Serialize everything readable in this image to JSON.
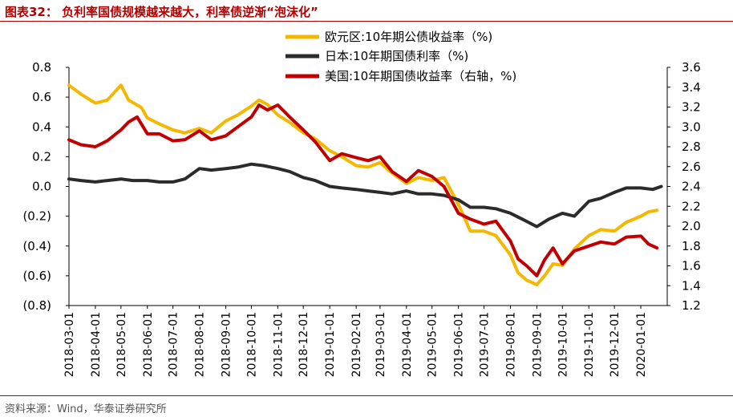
{
  "title": "图表32： 负利率国债规模越来越大，利率债逆渐“泡沫化”",
  "source": "资料来源：Wind，华泰证券研究所",
  "colors": {
    "euro": "#f5b800",
    "japan": "#2b2b2b",
    "us": "#c00000",
    "title": "#b30000"
  },
  "chart_data": {
    "type": "line",
    "title": "",
    "xlabel": "",
    "ylabel": "",
    "y_left": {
      "range": [
        -0.8,
        0.8
      ],
      "ticks": [
        "0.8",
        "0.6",
        "0.4",
        "0.2",
        "0.0",
        "(0.2)",
        "(0.4)",
        "(0.6)",
        "(0.8)"
      ]
    },
    "y_right": {
      "range": [
        1.2,
        3.6
      ],
      "ticks": [
        "3.6",
        "3.4",
        "3.2",
        "3.0",
        "2.8",
        "2.6",
        "2.4",
        "2.2",
        "2.0",
        "1.8",
        "1.6",
        "1.4",
        "1.2"
      ]
    },
    "x_ticks": [
      "2018-03-01",
      "2018-04-01",
      "2018-05-01",
      "2018-06-01",
      "2018-07-01",
      "2018-08-01",
      "2018-09-01",
      "2018-10-01",
      "2018-11-01",
      "2018-12-01",
      "2019-01-01",
      "2019-02-01",
      "2019-03-01",
      "2019-04-01",
      "2019-05-01",
      "2019-06-01",
      "2019-07-01",
      "2019-08-01",
      "2019-09-01",
      "2019-10-01",
      "2019-11-01",
      "2019-12-01",
      "2020-01-01"
    ],
    "legend_position": "top-right",
    "series": [
      {
        "name": "欧元区:10年期公债收益率（%)",
        "axis": "left",
        "x": [
          "2018-03-01",
          "2018-03-15",
          "2018-04-01",
          "2018-04-15",
          "2018-05-01",
          "2018-05-10",
          "2018-05-25",
          "2018-06-01",
          "2018-06-15",
          "2018-07-01",
          "2018-07-15",
          "2018-08-01",
          "2018-08-15",
          "2018-09-01",
          "2018-09-15",
          "2018-10-01",
          "2018-10-10",
          "2018-10-20",
          "2018-11-01",
          "2018-11-15",
          "2018-12-01",
          "2018-12-15",
          "2019-01-01",
          "2019-01-15",
          "2019-02-01",
          "2019-02-15",
          "2019-03-01",
          "2019-03-15",
          "2019-04-01",
          "2019-04-15",
          "2019-05-01",
          "2019-05-15",
          "2019-06-01",
          "2019-06-15",
          "2019-07-01",
          "2019-07-15",
          "2019-08-01",
          "2019-08-10",
          "2019-08-20",
          "2019-09-01",
          "2019-09-10",
          "2019-09-20",
          "2019-10-01",
          "2019-10-15",
          "2019-11-01",
          "2019-11-15",
          "2019-12-01",
          "2019-12-15",
          "2020-01-01",
          "2020-01-10",
          "2020-01-20"
        ],
        "values": [
          0.68,
          0.62,
          0.56,
          0.58,
          0.68,
          0.58,
          0.53,
          0.46,
          0.42,
          0.38,
          0.36,
          0.39,
          0.36,
          0.44,
          0.48,
          0.54,
          0.58,
          0.55,
          0.48,
          0.43,
          0.36,
          0.32,
          0.24,
          0.2,
          0.14,
          0.13,
          0.16,
          0.09,
          0.02,
          0.06,
          0.04,
          0.06,
          -0.12,
          -0.3,
          -0.3,
          -0.33,
          -0.46,
          -0.58,
          -0.63,
          -0.66,
          -0.6,
          -0.52,
          -0.53,
          -0.42,
          -0.33,
          -0.29,
          -0.3,
          -0.24,
          -0.2,
          -0.17,
          -0.16
        ]
      },
      {
        "name": "日本:10年期国债利率（%)",
        "axis": "left",
        "x": [
          "2018-03-01",
          "2018-03-15",
          "2018-04-01",
          "2018-04-15",
          "2018-05-01",
          "2018-05-15",
          "2018-06-01",
          "2018-06-15",
          "2018-07-01",
          "2018-07-15",
          "2018-08-01",
          "2018-08-15",
          "2018-09-01",
          "2018-09-15",
          "2018-10-01",
          "2018-10-15",
          "2018-11-01",
          "2018-11-15",
          "2018-12-01",
          "2018-12-15",
          "2019-01-01",
          "2019-01-15",
          "2019-02-01",
          "2019-02-15",
          "2019-03-01",
          "2019-03-15",
          "2019-04-01",
          "2019-04-15",
          "2019-05-01",
          "2019-05-15",
          "2019-06-01",
          "2019-06-15",
          "2019-07-01",
          "2019-07-15",
          "2019-08-01",
          "2019-08-15",
          "2019-09-01",
          "2019-09-15",
          "2019-10-01",
          "2019-10-15",
          "2019-11-01",
          "2019-11-15",
          "2019-12-01",
          "2019-12-15",
          "2020-01-01",
          "2020-01-15",
          "2020-01-25"
        ],
        "values": [
          0.05,
          0.04,
          0.03,
          0.04,
          0.05,
          0.04,
          0.04,
          0.03,
          0.03,
          0.05,
          0.12,
          0.11,
          0.12,
          0.13,
          0.15,
          0.14,
          0.12,
          0.1,
          0.06,
          0.04,
          0.0,
          -0.01,
          -0.02,
          -0.03,
          -0.04,
          -0.05,
          -0.03,
          -0.05,
          -0.05,
          -0.06,
          -0.09,
          -0.14,
          -0.14,
          -0.15,
          -0.18,
          -0.22,
          -0.27,
          -0.22,
          -0.18,
          -0.2,
          -0.1,
          -0.08,
          -0.04,
          -0.01,
          -0.01,
          -0.02,
          0.0
        ]
      },
      {
        "name": "美国:10年期国债收益率（右轴，%)",
        "axis": "right",
        "x": [
          "2018-03-01",
          "2018-03-15",
          "2018-04-01",
          "2018-04-15",
          "2018-05-01",
          "2018-05-10",
          "2018-05-20",
          "2018-06-01",
          "2018-06-15",
          "2018-07-01",
          "2018-07-15",
          "2018-08-01",
          "2018-08-15",
          "2018-09-01",
          "2018-09-15",
          "2018-10-01",
          "2018-10-10",
          "2018-10-20",
          "2018-11-01",
          "2018-11-15",
          "2018-12-01",
          "2018-12-15",
          "2019-01-01",
          "2019-01-15",
          "2019-02-01",
          "2019-02-15",
          "2019-03-01",
          "2019-03-15",
          "2019-04-01",
          "2019-04-15",
          "2019-05-01",
          "2019-05-15",
          "2019-06-01",
          "2019-06-15",
          "2019-07-01",
          "2019-07-15",
          "2019-08-01",
          "2019-08-10",
          "2019-08-20",
          "2019-09-01",
          "2019-09-10",
          "2019-09-20",
          "2019-10-01",
          "2019-10-15",
          "2019-11-01",
          "2019-11-15",
          "2019-12-01",
          "2019-12-15",
          "2020-01-01",
          "2020-01-10",
          "2020-01-20"
        ],
        "values": [
          2.87,
          2.82,
          2.8,
          2.86,
          2.97,
          3.05,
          3.1,
          2.93,
          2.93,
          2.86,
          2.87,
          2.96,
          2.87,
          2.91,
          3.0,
          3.1,
          3.22,
          3.17,
          3.22,
          3.1,
          2.97,
          2.85,
          2.66,
          2.73,
          2.69,
          2.66,
          2.7,
          2.55,
          2.45,
          2.56,
          2.5,
          2.4,
          2.13,
          2.07,
          2.02,
          2.05,
          1.85,
          1.67,
          1.6,
          1.5,
          1.66,
          1.78,
          1.62,
          1.75,
          1.8,
          1.84,
          1.82,
          1.89,
          1.9,
          1.82,
          1.78
        ]
      }
    ]
  }
}
